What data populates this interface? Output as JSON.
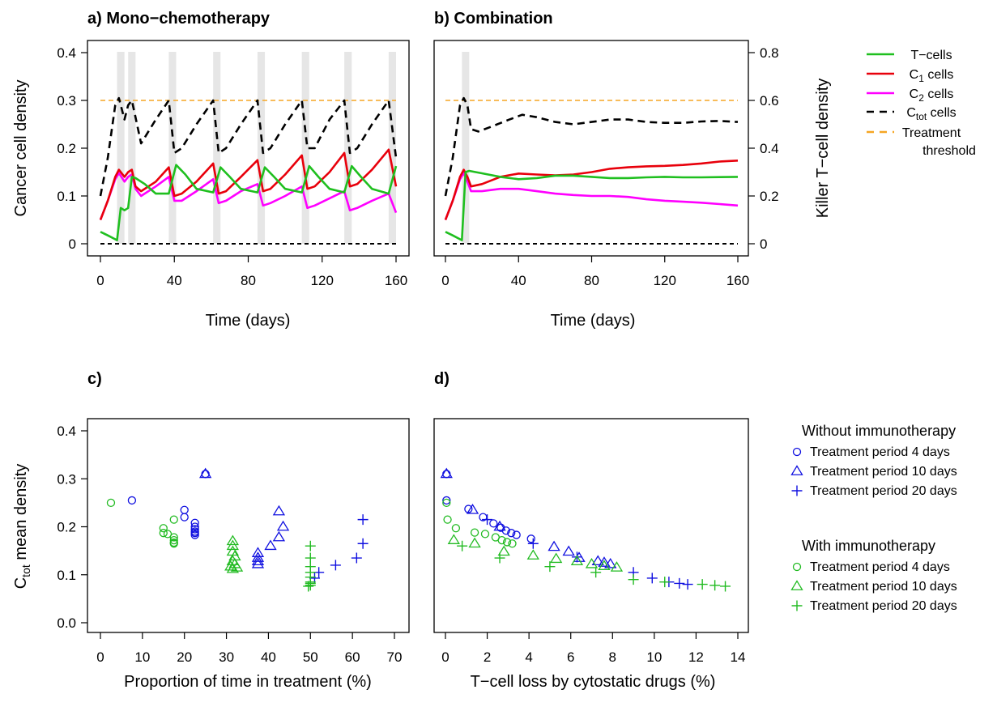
{
  "chart_data": [
    {
      "id": "a",
      "type": "line",
      "title": "a) Mono−chemotherapy",
      "xlabel": "Time (days)",
      "ylabel": "Cancer cell density",
      "xlim": [
        0,
        160
      ],
      "ylim": [
        0,
        0.4
      ],
      "x_ticks": [
        0,
        40,
        80,
        120,
        160
      ],
      "y_ticks": [
        0,
        0.1,
        0.2,
        0.3,
        0.4
      ],
      "y2_ticks": [
        0,
        0.2,
        0.4,
        0.6,
        0.8
      ],
      "y2_range": [
        0,
        0.8
      ],
      "treatment_periods": [
        [
          9,
          13
        ],
        [
          15,
          19
        ],
        [
          37,
          41
        ],
        [
          61,
          65
        ],
        [
          85,
          89
        ],
        [
          109,
          113
        ],
        [
          132,
          136
        ],
        [
          156,
          160
        ]
      ],
      "threshold": 0.3,
      "series": [
        {
          "key": "ctot",
          "color": "#000000",
          "dash": true,
          "axis": "left",
          "x": [
            0,
            4,
            8,
            10,
            13,
            15,
            17,
            19,
            22,
            30,
            37,
            40,
            44,
            52,
            61,
            64,
            68,
            76,
            85,
            88,
            92,
            100,
            109,
            112,
            116,
            124,
            132,
            135,
            139,
            147,
            156,
            160
          ],
          "y": [
            0.1,
            0.18,
            0.29,
            0.305,
            0.26,
            0.29,
            0.3,
            0.265,
            0.21,
            0.26,
            0.3,
            0.19,
            0.2,
            0.25,
            0.3,
            0.19,
            0.2,
            0.25,
            0.3,
            0.19,
            0.2,
            0.25,
            0.3,
            0.2,
            0.2,
            0.26,
            0.3,
            0.19,
            0.2,
            0.25,
            0.3,
            0.18
          ]
        },
        {
          "key": "c1",
          "color": "#e8000b",
          "axis": "left",
          "x": [
            0,
            4,
            8,
            10,
            13,
            15,
            17,
            19,
            22,
            30,
            37,
            40,
            44,
            52,
            61,
            64,
            68,
            76,
            85,
            88,
            92,
            100,
            109,
            112,
            116,
            124,
            132,
            135,
            139,
            147,
            156,
            160
          ],
          "y": [
            0.05,
            0.09,
            0.14,
            0.155,
            0.14,
            0.15,
            0.155,
            0.12,
            0.11,
            0.13,
            0.16,
            0.1,
            0.105,
            0.13,
            0.168,
            0.105,
            0.11,
            0.14,
            0.175,
            0.11,
            0.115,
            0.145,
            0.185,
            0.115,
            0.12,
            0.15,
            0.19,
            0.12,
            0.125,
            0.155,
            0.197,
            0.12
          ]
        },
        {
          "key": "c2",
          "color": "#ff00ff",
          "axis": "left",
          "x": [
            0,
            4,
            8,
            10,
            13,
            15,
            17,
            19,
            22,
            30,
            37,
            40,
            44,
            52,
            61,
            64,
            68,
            76,
            85,
            88,
            92,
            100,
            109,
            112,
            116,
            124,
            132,
            135,
            139,
            147,
            156,
            160
          ],
          "y": [
            0.05,
            0.09,
            0.135,
            0.148,
            0.13,
            0.14,
            0.145,
            0.115,
            0.1,
            0.12,
            0.14,
            0.09,
            0.09,
            0.11,
            0.135,
            0.085,
            0.09,
            0.11,
            0.125,
            0.08,
            0.085,
            0.1,
            0.12,
            0.075,
            0.08,
            0.095,
            0.11,
            0.07,
            0.075,
            0.09,
            0.105,
            0.065
          ]
        },
        {
          "key": "tcells",
          "color": "#1fbf1f",
          "axis": "right",
          "x": [
            0,
            4,
            9,
            11,
            13,
            15,
            17,
            19,
            24,
            30,
            37,
            41,
            46,
            52,
            61,
            65,
            70,
            76,
            85,
            89,
            94,
            100,
            109,
            113,
            118,
            124,
            132,
            136,
            141,
            147,
            156,
            160
          ],
          "y": [
            0.05,
            0.035,
            0.015,
            0.15,
            0.14,
            0.15,
            0.28,
            0.275,
            0.25,
            0.21,
            0.21,
            0.33,
            0.29,
            0.23,
            0.215,
            0.32,
            0.28,
            0.23,
            0.215,
            0.32,
            0.28,
            0.23,
            0.215,
            0.325,
            0.28,
            0.23,
            0.215,
            0.325,
            0.28,
            0.23,
            0.21,
            0.325
          ]
        },
        {
          "key": "zero",
          "color": "#000000",
          "dash": true,
          "axis": "left",
          "x": [
            0,
            160
          ],
          "y": [
            0,
            0
          ]
        }
      ]
    },
    {
      "id": "b",
      "type": "line",
      "title": "b) Combination",
      "xlabel": "Time (days)",
      "y2label": "Killer T−cell density",
      "xlim": [
        0,
        160
      ],
      "ylim": [
        0,
        0.4
      ],
      "x_ticks": [
        0,
        40,
        80,
        120,
        160
      ],
      "y2_ticks": [
        0,
        0.2,
        0.4,
        0.6,
        0.8
      ],
      "y2_tick_labels": [
        "0",
        "0.2",
        "0.4",
        "0.6",
        "0.8"
      ],
      "y2_range": [
        0,
        0.8
      ],
      "treatment_periods": [
        [
          9,
          13
        ]
      ],
      "threshold": 0.3,
      "series": [
        {
          "key": "ctot",
          "color": "#000000",
          "dash": true,
          "axis": "left",
          "x": [
            0,
            4,
            8,
            10,
            12,
            14,
            18,
            25,
            35,
            42,
            50,
            60,
            70,
            80,
            90,
            100,
            110,
            120,
            130,
            140,
            150,
            160
          ],
          "y": [
            0.1,
            0.18,
            0.29,
            0.305,
            0.29,
            0.24,
            0.235,
            0.245,
            0.26,
            0.27,
            0.265,
            0.255,
            0.25,
            0.255,
            0.26,
            0.26,
            0.255,
            0.253,
            0.253,
            0.256,
            0.257,
            0.255
          ]
        },
        {
          "key": "c1",
          "color": "#e8000b",
          "axis": "left",
          "x": [
            0,
            4,
            8,
            10,
            12,
            14,
            20,
            30,
            40,
            50,
            60,
            70,
            80,
            90,
            100,
            110,
            120,
            130,
            140,
            150,
            160
          ],
          "y": [
            0.05,
            0.09,
            0.14,
            0.155,
            0.14,
            0.12,
            0.125,
            0.14,
            0.147,
            0.145,
            0.143,
            0.145,
            0.15,
            0.157,
            0.16,
            0.162,
            0.163,
            0.165,
            0.168,
            0.172,
            0.174
          ]
        },
        {
          "key": "c2",
          "color": "#ff00ff",
          "axis": "left",
          "x": [
            0,
            4,
            8,
            10,
            12,
            14,
            20,
            30,
            40,
            50,
            60,
            70,
            80,
            90,
            100,
            110,
            120,
            130,
            140,
            150,
            160
          ],
          "y": [
            0.05,
            0.09,
            0.135,
            0.148,
            0.13,
            0.11,
            0.11,
            0.115,
            0.115,
            0.11,
            0.105,
            0.102,
            0.1,
            0.1,
            0.098,
            0.093,
            0.09,
            0.088,
            0.086,
            0.083,
            0.08
          ]
        },
        {
          "key": "tcells",
          "color": "#1fbf1f",
          "axis": "right",
          "x": [
            0,
            4,
            9,
            11,
            13,
            20,
            30,
            40,
            50,
            60,
            70,
            80,
            90,
            100,
            110,
            120,
            130,
            140,
            150,
            160
          ],
          "y": [
            0.05,
            0.035,
            0.015,
            0.3,
            0.305,
            0.295,
            0.28,
            0.27,
            0.275,
            0.285,
            0.285,
            0.28,
            0.275,
            0.275,
            0.278,
            0.28,
            0.278,
            0.278,
            0.279,
            0.28
          ]
        },
        {
          "key": "zero",
          "color": "#000000",
          "dash": true,
          "axis": "left",
          "x": [
            0,
            160
          ],
          "y": [
            0,
            0
          ]
        }
      ]
    },
    {
      "id": "c",
      "type": "scatter",
      "title": "c)",
      "xlabel": "Proportion of time in treatment (%)",
      "ylabel_main": "C",
      "ylabel_sub": "tot",
      "ylabel_rest": " mean density",
      "xlim": [
        0,
        70
      ],
      "ylim": [
        0,
        0.4
      ],
      "x_ticks": [
        0,
        10,
        20,
        30,
        40,
        50,
        60,
        70
      ],
      "y_ticks": [
        0.0,
        0.1,
        0.2,
        0.3,
        0.4
      ],
      "y_tick_labels": [
        "0.0",
        "0.1",
        "0.2",
        "0.3",
        "0.4"
      ],
      "groups": [
        {
          "immuno": false,
          "marker": "circle",
          "color": "#1010e0",
          "x": [
            7.5,
            20,
            20,
            22.5,
            22.5,
            22.5,
            22.5,
            22.5,
            22.5,
            25
          ],
          "y": [
            0.255,
            0.235,
            0.22,
            0.208,
            0.2,
            0.195,
            0.19,
            0.187,
            0.183,
            0.31
          ]
        },
        {
          "immuno": false,
          "marker": "triangle",
          "color": "#1010e0",
          "x": [
            25,
            37.5,
            37.5,
            37.5,
            37.5,
            40.5,
            42.5,
            43.5,
            42.5
          ],
          "y": [
            0.31,
            0.145,
            0.135,
            0.128,
            0.122,
            0.16,
            0.178,
            0.2,
            0.232
          ]
        },
        {
          "immuno": false,
          "marker": "plus",
          "color": "#1010e0",
          "x": [
            51,
            52,
            56,
            61,
            62.5,
            62.5
          ],
          "y": [
            0.093,
            0.105,
            0.12,
            0.135,
            0.165,
            0.215
          ]
        },
        {
          "immuno": true,
          "marker": "circle",
          "color": "#22bb22",
          "x": [
            2.5,
            15,
            15,
            16,
            17.5,
            17.5,
            17.5,
            17.5,
            17.5
          ],
          "y": [
            0.25,
            0.197,
            0.187,
            0.185,
            0.215,
            0.178,
            0.172,
            0.167,
            0.165
          ]
        },
        {
          "immuno": true,
          "marker": "triangle",
          "color": "#22bb22",
          "x": [
            31.5,
            31.5,
            31.5,
            32,
            31.5,
            32,
            31,
            32.5,
            31.5
          ],
          "y": [
            0.17,
            0.16,
            0.148,
            0.138,
            0.128,
            0.122,
            0.117,
            0.115,
            0.112
          ]
        },
        {
          "immuno": true,
          "marker": "plus",
          "color": "#22bb22",
          "x": [
            50,
            50,
            50,
            50,
            50,
            50,
            50,
            50,
            49.5
          ],
          "y": [
            0.16,
            0.135,
            0.117,
            0.105,
            0.095,
            0.085,
            0.082,
            0.078,
            0.076
          ]
        }
      ]
    },
    {
      "id": "d",
      "type": "scatter",
      "title": "d)",
      "xlabel": "T−cell loss by cytostatic drugs (%)",
      "xlim": [
        0,
        14
      ],
      "ylim": [
        0,
        0.4
      ],
      "x_ticks": [
        0,
        2,
        4,
        6,
        8,
        10,
        12,
        14
      ],
      "groups": [
        {
          "immuno": false,
          "marker": "circle",
          "color": "#1010e0",
          "x": [
            0.05,
            0.05,
            1.1,
            1.8,
            2.3,
            2.65,
            2.9,
            3.15,
            3.4,
            4.1
          ],
          "y": [
            0.31,
            0.255,
            0.237,
            0.22,
            0.207,
            0.198,
            0.192,
            0.187,
            0.183,
            0.175
          ]
        },
        {
          "immuno": false,
          "marker": "triangle",
          "color": "#1010e0",
          "x": [
            0.05,
            1.3,
            2.6,
            5.2,
            5.9,
            6.4,
            7.3,
            7.6,
            7.9
          ],
          "y": [
            0.31,
            0.235,
            0.2,
            0.158,
            0.148,
            0.135,
            0.128,
            0.125,
            0.122
          ]
        },
        {
          "immuno": false,
          "marker": "plus",
          "color": "#1010e0",
          "x": [
            2.0,
            4.2,
            6.3,
            9.0,
            9.9,
            10.7,
            11.2,
            11.6
          ],
          "y": [
            0.215,
            0.165,
            0.137,
            0.105,
            0.093,
            0.085,
            0.082,
            0.08
          ]
        },
        {
          "immuno": true,
          "marker": "circle",
          "color": "#22bb22",
          "x": [
            0.05,
            0.1,
            0.5,
            1.4,
            1.9,
            2.4,
            2.7,
            2.95,
            3.2
          ],
          "y": [
            0.25,
            0.215,
            0.197,
            0.188,
            0.185,
            0.178,
            0.172,
            0.168,
            0.165
          ]
        },
        {
          "immuno": true,
          "marker": "triangle",
          "color": "#22bb22",
          "x": [
            0.4,
            1.4,
            2.8,
            4.2,
            5.3,
            6.3,
            7.0,
            7.6,
            8.2
          ],
          "y": [
            0.172,
            0.165,
            0.148,
            0.14,
            0.133,
            0.128,
            0.122,
            0.118,
            0.115
          ]
        },
        {
          "immuno": true,
          "marker": "plus",
          "color": "#22bb22",
          "x": [
            0.8,
            2.6,
            5.0,
            7.2,
            9.0,
            10.5,
            12.3,
            12.9,
            13.4
          ],
          "y": [
            0.16,
            0.135,
            0.117,
            0.105,
            0.09,
            0.085,
            0.08,
            0.078,
            0.076
          ]
        }
      ]
    }
  ],
  "legend_top": {
    "items": [
      {
        "main": "T−cells",
        "sub": "",
        "rest": "",
        "color": "#1fbf1f",
        "dash": false
      },
      {
        "main": "C",
        "sub": "1",
        "rest": " cells",
        "color": "#e8000b",
        "dash": false
      },
      {
        "main": "C",
        "sub": "2",
        "rest": " cells",
        "color": "#ff00ff",
        "dash": false
      },
      {
        "main": "C",
        "sub": "tot",
        "rest": " cells",
        "color": "#000000",
        "dash": true
      },
      {
        "main": "Treatment",
        "sub": "",
        "rest": "",
        "line2": "threshold",
        "color": "#f5a623",
        "dash": true
      }
    ]
  },
  "legend_bottom": {
    "sections": [
      {
        "title": "Without immunotherapy",
        "color": "#1010e0",
        "items": [
          {
            "marker": "circle",
            "label": "Treatment period 4 days"
          },
          {
            "marker": "triangle",
            "label": "Treatment period 10 days"
          },
          {
            "marker": "plus",
            "label": "Treatment period 20 days"
          }
        ]
      },
      {
        "title": "With immunotherapy",
        "color": "#22bb22",
        "items": [
          {
            "marker": "circle",
            "label": "Treatment period 4 days"
          },
          {
            "marker": "triangle",
            "label": "Treatment period 10 days"
          },
          {
            "marker": "plus",
            "label": "Treatment period 20 days"
          }
        ]
      }
    ]
  },
  "colors": {
    "threshold": "#f5a623",
    "treatment_band": "#e6e6e6"
  }
}
